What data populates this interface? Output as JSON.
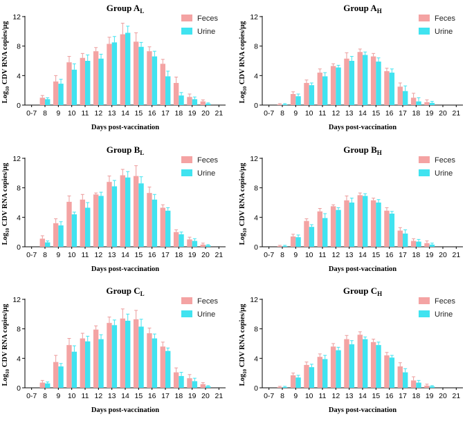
{
  "figure": {
    "colors": {
      "feces": "#f4a3a3",
      "urine": "#40e3f0",
      "error": "#ec9b9b",
      "axis": "#000000"
    }
  },
  "chart_data": [
    {
      "type": "bar",
      "title": "Group A",
      "title_sub": "L",
      "xlabel": "Days post-vaccination",
      "ylabel_prefix": "Log",
      "ylabel_sub": "10",
      "ylabel_rest": " CDV RNA copies/μg",
      "ylim": [
        0,
        12
      ],
      "yticks": [
        "0",
        "4",
        "8",
        "12"
      ],
      "categories": [
        "0-7",
        "8",
        "9",
        "10",
        "11",
        "12",
        "13",
        "14",
        "15",
        "16",
        "17",
        "18",
        "19",
        "20",
        "21"
      ],
      "legend": [
        "Feces",
        "Urine"
      ],
      "series": [
        {
          "name": "Feces",
          "values": [
            0,
            1.0,
            3.2,
            5.8,
            6.4,
            7.3,
            8.3,
            9.6,
            8.6,
            7.3,
            5.6,
            3.0,
            1.1,
            0.5,
            0
          ],
          "errors": [
            0,
            0.3,
            0.8,
            0.8,
            0.6,
            0.5,
            0.9,
            1.5,
            1.2,
            0.6,
            0.6,
            0.8,
            0.4,
            0.2,
            0
          ]
        },
        {
          "name": "Urine",
          "values": [
            0,
            0.8,
            2.9,
            4.8,
            6.0,
            6.3,
            8.5,
            9.8,
            7.9,
            6.6,
            3.9,
            1.3,
            0.8,
            0.2,
            0
          ],
          "errors": [
            0,
            0.2,
            0.6,
            0.8,
            0.8,
            0.6,
            0.8,
            0.9,
            0.6,
            0.7,
            0.7,
            0.4,
            0.3,
            0.1,
            0
          ]
        }
      ]
    },
    {
      "type": "bar",
      "title": "Group A",
      "title_sub": "H",
      "xlabel": "Days post-vaccination",
      "ylabel_prefix": "Log",
      "ylabel_sub": "10",
      "ylabel_rest": " CDV RNA copies/μg",
      "ylim": [
        0,
        12
      ],
      "yticks": [
        "0",
        "4",
        "8",
        "12"
      ],
      "categories": [
        "0-7",
        "8",
        "9",
        "10",
        "11",
        "12",
        "13",
        "14",
        "15",
        "16",
        "17",
        "18",
        "19",
        "20",
        "21"
      ],
      "legend": [
        "Feces",
        "Urine"
      ],
      "series": [
        {
          "name": "Feces",
          "values": [
            0,
            0.1,
            1.5,
            3.0,
            4.4,
            5.3,
            6.3,
            7.2,
            6.6,
            4.6,
            2.5,
            1.0,
            0.4,
            0,
            0
          ],
          "errors": [
            0,
            0.1,
            0.3,
            0.4,
            0.5,
            0.3,
            0.8,
            0.4,
            0.4,
            0.4,
            0.5,
            0.6,
            0.3,
            0,
            0
          ]
        },
        {
          "name": "Urine",
          "values": [
            0,
            0.1,
            1.2,
            2.7,
            3.9,
            5.1,
            6.0,
            6.8,
            5.9,
            4.4,
            1.9,
            0.5,
            0.3,
            0,
            0
          ],
          "errors": [
            0,
            0.1,
            0.3,
            0.3,
            0.5,
            0.3,
            0.6,
            0.4,
            0.5,
            0.5,
            0.7,
            0.5,
            0.2,
            0,
            0
          ]
        }
      ]
    },
    {
      "type": "bar",
      "title": "Group B",
      "title_sub": "L",
      "xlabel": "Days post-vaccination",
      "ylabel_prefix": "Log",
      "ylabel_sub": "10",
      "ylabel_rest": " CDV RNA copies/μg",
      "ylim": [
        0,
        12
      ],
      "yticks": [
        "0",
        "4",
        "8",
        "12"
      ],
      "categories": [
        "0-7",
        "8",
        "9",
        "10",
        "11",
        "12",
        "13",
        "14",
        "15",
        "16",
        "17",
        "18",
        "19",
        "20",
        "21"
      ],
      "legend": [
        "Feces",
        "Urine"
      ],
      "series": [
        {
          "name": "Feces",
          "values": [
            0,
            1.1,
            3.2,
            6.1,
            6.4,
            7.1,
            8.8,
            9.7,
            9.6,
            7.3,
            5.3,
            2.0,
            1.0,
            0.3,
            0
          ],
          "errors": [
            0,
            0.4,
            0.6,
            0.8,
            0.7,
            0.2,
            0.8,
            0.8,
            1.4,
            0.8,
            0.4,
            0.3,
            0.3,
            0.2,
            0
          ]
        },
        {
          "name": "Urine",
          "values": [
            0,
            0.6,
            2.9,
            4.4,
            5.3,
            6.9,
            8.2,
            9.4,
            8.6,
            6.4,
            4.9,
            1.7,
            0.8,
            0.2,
            0
          ],
          "errors": [
            0,
            0.2,
            0.5,
            0.3,
            0.7,
            0.5,
            0.8,
            0.8,
            0.9,
            0.7,
            0.4,
            0.3,
            0.3,
            0.1,
            0
          ]
        }
      ]
    },
    {
      "type": "bar",
      "title": "Group B",
      "title_sub": "H",
      "xlabel": "Days post-vaccination",
      "ylabel_prefix": "Log",
      "ylabel_sub": "10",
      "ylabel_rest": " CDV RNA copies/μg",
      "ylim": [
        0,
        12
      ],
      "yticks": [
        "0",
        "4",
        "8",
        "12"
      ],
      "categories": [
        "0-7",
        "8",
        "9",
        "10",
        "11",
        "12",
        "13",
        "14",
        "15",
        "16",
        "17",
        "18",
        "19",
        "20",
        "21"
      ],
      "legend": [
        "Feces",
        "Urine"
      ],
      "series": [
        {
          "name": "Feces",
          "values": [
            0,
            0.1,
            1.4,
            3.5,
            4.8,
            5.5,
            6.3,
            7.0,
            6.3,
            4.9,
            2.2,
            0.8,
            0.5,
            0,
            0
          ],
          "errors": [
            0,
            0.1,
            0.3,
            0.3,
            0.4,
            0.2,
            0.6,
            0.3,
            0.3,
            0.4,
            0.4,
            0.3,
            0.3,
            0,
            0
          ]
        },
        {
          "name": "Urine",
          "values": [
            0,
            0.1,
            1.3,
            2.7,
            3.9,
            5.0,
            6.0,
            6.9,
            6.0,
            4.5,
            1.8,
            0.7,
            0.3,
            0,
            0
          ],
          "errors": [
            0,
            0.1,
            0.3,
            0.3,
            0.6,
            0.3,
            0.6,
            0.3,
            0.4,
            0.3,
            0.5,
            0.3,
            0.2,
            0,
            0
          ]
        }
      ]
    },
    {
      "type": "bar",
      "title": "Group C",
      "title_sub": "L",
      "xlabel": "Days post-vaccination",
      "ylabel_prefix": "Log",
      "ylabel_sub": "10",
      "ylabel_rest": " CDV RNA copies/μg",
      "ylim": [
        0,
        12
      ],
      "yticks": [
        "0",
        "4",
        "8",
        "12"
      ],
      "categories": [
        "0-7",
        "8",
        "9",
        "10",
        "11",
        "12",
        "13",
        "14",
        "15",
        "16",
        "17",
        "18",
        "19",
        "20",
        "21"
      ],
      "legend": [
        "Feces",
        "Urine"
      ],
      "series": [
        {
          "name": "Feces",
          "values": [
            0,
            0.7,
            3.5,
            5.8,
            6.7,
            7.9,
            8.8,
            9.4,
            9.3,
            7.4,
            5.6,
            2.1,
            1.3,
            0.5,
            0
          ],
          "errors": [
            0,
            0.3,
            0.9,
            0.9,
            0.7,
            0.5,
            0.8,
            1.3,
            1.2,
            0.7,
            0.6,
            0.6,
            0.5,
            0.2,
            0
          ]
        },
        {
          "name": "Urine",
          "values": [
            0,
            0.6,
            2.9,
            4.9,
            6.3,
            6.6,
            8.5,
            9.1,
            8.3,
            6.7,
            5.0,
            1.6,
            0.9,
            0.2,
            0
          ],
          "errors": [
            0,
            0.2,
            0.4,
            0.8,
            0.7,
            0.6,
            0.7,
            0.9,
            1.0,
            0.6,
            0.4,
            0.5,
            0.4,
            0.1,
            0
          ]
        }
      ]
    },
    {
      "type": "bar",
      "title": "Group C",
      "title_sub": "H",
      "xlabel": "Days post-vaccination",
      "ylabel_prefix": "Log",
      "ylabel_sub": "10",
      "ylabel_rest": " CDV RNA copies/μg",
      "ylim": [
        0,
        12
      ],
      "yticks": [
        "0",
        "4",
        "8",
        "12"
      ],
      "categories": [
        "0-7",
        "8",
        "9",
        "10",
        "11",
        "12",
        "13",
        "14",
        "15",
        "16",
        "17",
        "18",
        "19",
        "20",
        "21"
      ],
      "legend": [
        "Feces",
        "Urine"
      ],
      "series": [
        {
          "name": "Feces",
          "values": [
            0,
            0.1,
            1.7,
            3.1,
            4.2,
            5.6,
            6.6,
            7.2,
            6.2,
            4.4,
            2.9,
            1.0,
            0.3,
            0,
            0
          ],
          "errors": [
            0,
            0.1,
            0.3,
            0.4,
            0.4,
            0.4,
            0.5,
            0.4,
            0.4,
            0.4,
            0.5,
            0.5,
            0.2,
            0,
            0
          ]
        },
        {
          "name": "Urine",
          "values": [
            0,
            0.1,
            1.4,
            2.8,
            3.9,
            5.1,
            5.9,
            6.6,
            5.8,
            4.1,
            2.1,
            0.7,
            0.2,
            0,
            0
          ],
          "errors": [
            0,
            0.1,
            0.3,
            0.4,
            0.5,
            0.4,
            0.5,
            0.3,
            0.4,
            0.3,
            0.5,
            0.3,
            0.1,
            0,
            0
          ]
        }
      ]
    }
  ]
}
